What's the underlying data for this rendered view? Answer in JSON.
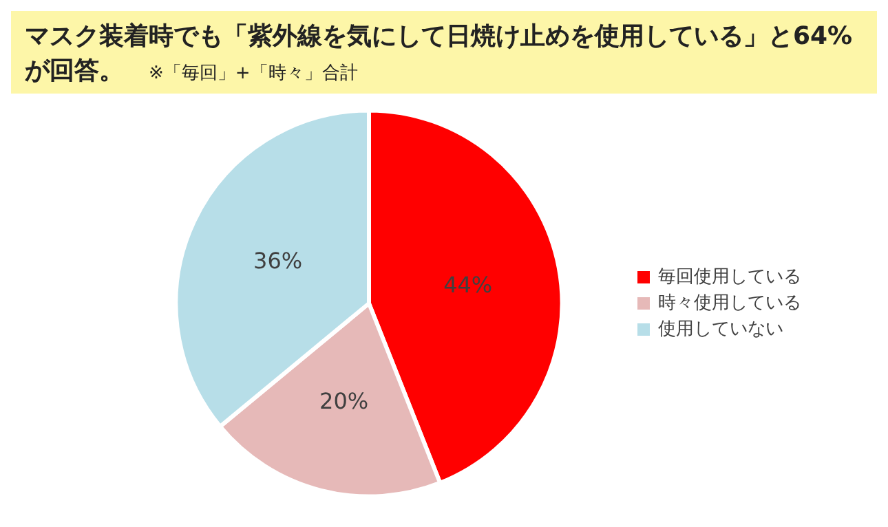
{
  "chart_data": {
    "type": "pie",
    "title": "マスク装着時でも「紫外線を気にして日焼け止めを使用している」と64%が回答。",
    "subtitle": "※「毎回」+「時々」合計",
    "categories": [
      "毎回使用している",
      "時々使用している",
      "使用していない"
    ],
    "values": [
      44,
      20,
      36
    ],
    "colors": [
      "#ff0000",
      "#e6b9b8",
      "#b7dee8"
    ],
    "value_labels": [
      "44%",
      "20%",
      "36%"
    ],
    "legend": "right"
  }
}
